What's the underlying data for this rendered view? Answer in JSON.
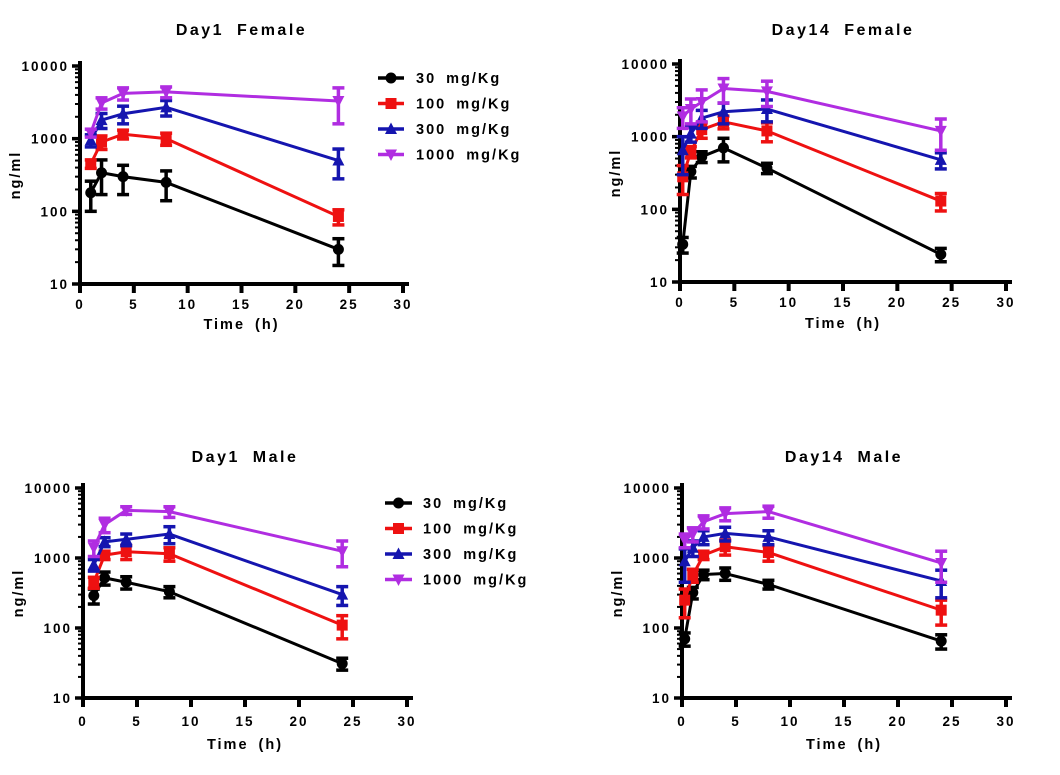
{
  "figure": {
    "background": "#FFFFFF",
    "xlabel": "Time (h)",
    "ylabel": "ng/ml",
    "legend_labels": [
      "30 mg/Kg",
      "100 mg/Kg",
      "300 mg/Kg",
      "1000 mg/Kg"
    ],
    "colors": {
      "dose_30": "#000000",
      "dose_100": "#EE1111",
      "dose_300": "#1515AF",
      "dose_1000": "#B02DE1"
    }
  },
  "chart_data": [
    {
      "id": "day1-female",
      "type": "line",
      "title": "Day1 Female",
      "xlabel": "Time (h)",
      "ylabel": "ng/ml",
      "x_scale": "linear",
      "y_scale": "log",
      "xlim": [
        0,
        30
      ],
      "ylim": [
        10,
        10000
      ],
      "xticks": [
        0,
        5,
        10,
        15,
        20,
        25,
        30
      ],
      "yticks": [
        10,
        100,
        1000,
        10000
      ],
      "grid": false,
      "show_legend": true,
      "legend_position": "right-top",
      "x": [
        1,
        2,
        4,
        8,
        24
      ],
      "series": [
        {
          "name": "30 mg/Kg",
          "color": "#000000",
          "marker": "circle",
          "values": [
            180,
            340,
            300,
            250,
            30
          ],
          "err": [
            80,
            170,
            130,
            110,
            12
          ]
        },
        {
          "name": "100 mg/Kg",
          "color": "#EE1111",
          "marker": "square",
          "values": [
            450,
            900,
            1150,
            1000,
            85
          ],
          "err": [
            60,
            190,
            160,
            190,
            20
          ]
        },
        {
          "name": "300 mg/Kg",
          "color": "#1515AF",
          "marker": "triangle-up",
          "values": [
            950,
            1800,
            2200,
            2700,
            500
          ],
          "err": [
            180,
            420,
            600,
            650,
            220
          ]
        },
        {
          "name": "1000 mg/Kg",
          "color": "#B02DE1",
          "marker": "triangle-down",
          "values": [
            1200,
            3100,
            4200,
            4400,
            3300
          ],
          "err": [
            150,
            550,
            800,
            750,
            1700
          ]
        }
      ]
    },
    {
      "id": "day14-female",
      "type": "line",
      "title": "Day14 Female",
      "xlabel": "Time (h)",
      "ylabel": "ng/ml",
      "x_scale": "linear",
      "y_scale": "log",
      "xlim": [
        0,
        30
      ],
      "ylim": [
        10,
        10000
      ],
      "xticks": [
        0,
        5,
        10,
        15,
        20,
        25,
        30
      ],
      "yticks": [
        10,
        100,
        1000,
        10000
      ],
      "grid": false,
      "show_legend": false,
      "x": [
        0.25,
        1,
        2,
        4,
        8,
        24
      ],
      "series": [
        {
          "name": "30 mg/Kg",
          "color": "#000000",
          "marker": "circle",
          "values": [
            33,
            330,
            530,
            700,
            370,
            24
          ],
          "err": [
            8,
            60,
            90,
            250,
            60,
            5
          ]
        },
        {
          "name": "100 mg/Kg",
          "color": "#EE1111",
          "marker": "square",
          "values": [
            280,
            620,
            1250,
            1600,
            1200,
            130
          ],
          "err": [
            120,
            110,
            300,
            320,
            350,
            35
          ]
        },
        {
          "name": "300 mg/Kg",
          "color": "#1515AF",
          "marker": "triangle-up",
          "values": [
            650,
            1100,
            1800,
            2200,
            2400,
            480
          ],
          "err": [
            350,
            260,
            500,
            700,
            800,
            120
          ]
        },
        {
          "name": "1000 mg/Kg",
          "color": "#B02DE1",
          "marker": "triangle-down",
          "values": [
            1900,
            2400,
            3000,
            4600,
            4200,
            1200
          ],
          "err": [
            600,
            900,
            1400,
            1700,
            1600,
            550
          ]
        }
      ]
    },
    {
      "id": "day1-male",
      "type": "line",
      "title": "Day1 Male",
      "xlabel": "Time (h)",
      "ylabel": "ng/ml",
      "x_scale": "linear",
      "y_scale": "log",
      "xlim": [
        0,
        30
      ],
      "ylim": [
        10,
        10000
      ],
      "xticks": [
        0,
        5,
        10,
        15,
        20,
        25,
        30
      ],
      "yticks": [
        10,
        100,
        1000,
        10000
      ],
      "grid": false,
      "show_legend": true,
      "legend_position": "right-top",
      "x": [
        1,
        2,
        4,
        8,
        24
      ],
      "series": [
        {
          "name": "30 mg/Kg",
          "color": "#000000",
          "marker": "circle",
          "values": [
            290,
            520,
            450,
            330,
            31
          ],
          "err": [
            70,
            110,
            90,
            60,
            6
          ]
        },
        {
          "name": "100 mg/Kg",
          "color": "#EE1111",
          "marker": "square",
          "values": [
            450,
            1100,
            1230,
            1150,
            110
          ],
          "err": [
            80,
            150,
            280,
            250,
            40
          ]
        },
        {
          "name": "300 mg/Kg",
          "color": "#1515AF",
          "marker": "triangle-up",
          "values": [
            800,
            1700,
            1850,
            2200,
            300
          ],
          "err": [
            150,
            250,
            350,
            600,
            90
          ]
        },
        {
          "name": "1000 mg/Kg",
          "color": "#B02DE1",
          "marker": "triangle-down",
          "values": [
            1400,
            3000,
            4800,
            4600,
            1250
          ],
          "err": [
            350,
            700,
            600,
            800,
            500
          ]
        }
      ]
    },
    {
      "id": "day14-male",
      "type": "line",
      "title": "Day14 Male",
      "xlabel": "Time (h)",
      "ylabel": "ng/ml",
      "x_scale": "linear",
      "y_scale": "log",
      "xlim": [
        0,
        30
      ],
      "ylim": [
        10,
        10000
      ],
      "xticks": [
        0,
        5,
        10,
        15,
        20,
        25,
        30
      ],
      "yticks": [
        10,
        100,
        1000,
        10000
      ],
      "grid": false,
      "show_legend": false,
      "x": [
        0.25,
        1,
        2,
        4,
        8,
        24
      ],
      "series": [
        {
          "name": "30 mg/Kg",
          "color": "#000000",
          "marker": "circle",
          "values": [
            70,
            320,
            580,
            600,
            420,
            65
          ],
          "err": [
            15,
            60,
            90,
            120,
            60,
            15
          ]
        },
        {
          "name": "100 mg/Kg",
          "color": "#EE1111",
          "marker": "square",
          "values": [
            250,
            570,
            1100,
            1450,
            1200,
            180
          ],
          "err": [
            110,
            120,
            150,
            350,
            300,
            70
          ]
        },
        {
          "name": "300 mg/Kg",
          "color": "#1515AF",
          "marker": "triangle-up",
          "values": [
            900,
            1400,
            2000,
            2250,
            2000,
            470
          ],
          "err": [
            450,
            350,
            450,
            500,
            450,
            200
          ]
        },
        {
          "name": "1000 mg/Kg",
          "color": "#B02DE1",
          "marker": "triangle-down",
          "values": [
            1800,
            2200,
            3300,
            4300,
            4600,
            850
          ],
          "err": [
            400,
            500,
            700,
            900,
            900,
            400
          ]
        }
      ]
    }
  ]
}
